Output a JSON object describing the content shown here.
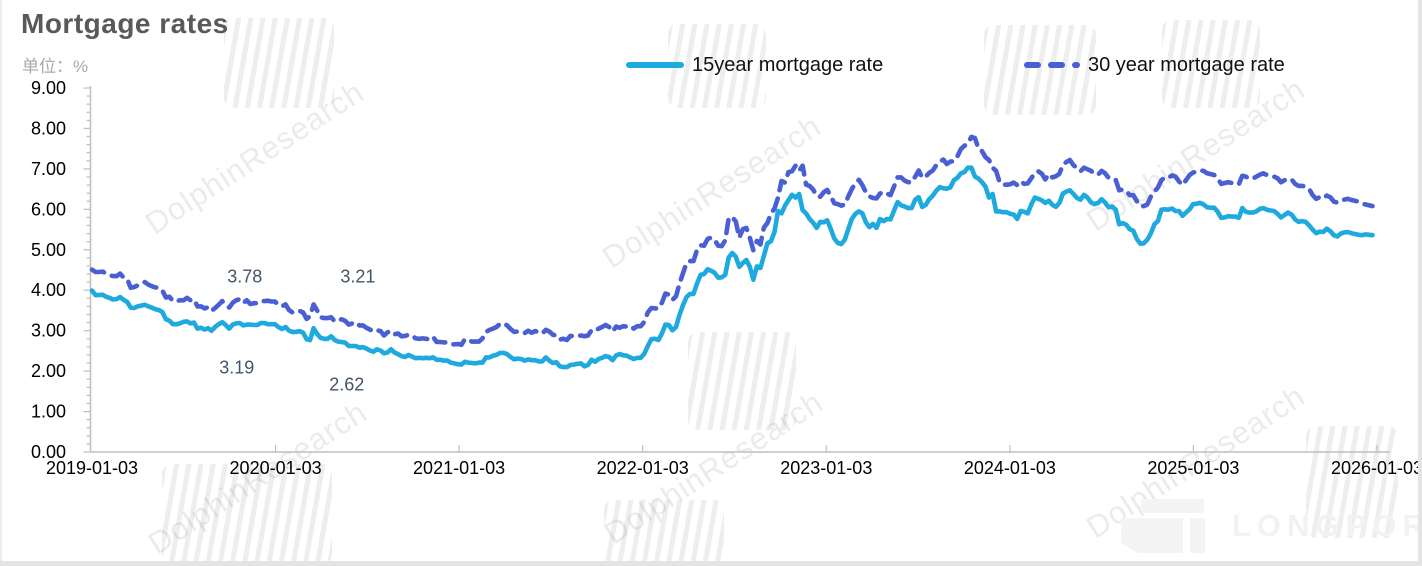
{
  "header": {
    "title": "Mortgage rates",
    "unit_label": "单位：%"
  },
  "legend": {
    "items": [
      {
        "label": "15year mortgage rate",
        "color": "#1EAADE",
        "style": "solid"
      },
      {
        "label": "30 year mortgage rate",
        "color": "#4A5FD3",
        "style": "dashed"
      }
    ]
  },
  "watermark": {
    "text": "DolphinResearch"
  },
  "logo": {
    "text": "LONGPORT"
  },
  "chart_data": {
    "type": "line",
    "title": "Mortgage rates",
    "unit": "%",
    "xlabel": "",
    "ylabel": "%",
    "grid": false,
    "legend_position": "top",
    "start_date": "2019-01-03",
    "interval_days": 7,
    "x_axis": {
      "tick_labels": [
        "2019-01-03",
        "2020-01-03",
        "2021-01-03",
        "2022-01-03",
        "2023-01-03",
        "2024-01-03",
        "2025-01-03",
        "2026-01-03"
      ],
      "span_days": 2557
    },
    "y_axis": {
      "min": 0,
      "max": 9,
      "major_step": 1,
      "minor_step": 0.2,
      "tick_labels": [
        "0.00",
        "1.00",
        "2.00",
        "3.00",
        "4.00",
        "5.00",
        "6.00",
        "7.00",
        "8.00",
        "9.00"
      ]
    },
    "series": [
      {
        "name": "30 year mortgage rate",
        "color": "#4A5FD3",
        "line_style": "dashed",
        "values": [
          4.51,
          4.45,
          4.45,
          4.46,
          4.41,
          4.37,
          4.35,
          4.35,
          4.41,
          4.31,
          4.28,
          4.06,
          4.08,
          4.12,
          4.17,
          4.2,
          4.14,
          4.1,
          4.07,
          4.06,
          3.99,
          3.82,
          3.84,
          3.73,
          3.73,
          3.75,
          3.75,
          3.81,
          3.75,
          3.77,
          3.6,
          3.6,
          3.55,
          3.58,
          3.49,
          3.56,
          3.64,
          3.73,
          3.65,
          3.57,
          3.69,
          3.75,
          3.78,
          3.69,
          3.75,
          3.66,
          3.68,
          3.68,
          3.73,
          3.73,
          3.74,
          3.72,
          3.72,
          3.64,
          3.6,
          3.65,
          3.51,
          3.45,
          3.47,
          3.49,
          3.45,
          3.29,
          3.36,
          3.65,
          3.5,
          3.33,
          3.31,
          3.31,
          3.33,
          3.23,
          3.26,
          3.28,
          3.24,
          3.15,
          3.18,
          3.21,
          3.13,
          3.13,
          3.07,
          3.03,
          2.98,
          3.01,
          2.99,
          2.88,
          2.96,
          2.99,
          2.91,
          2.93,
          2.86,
          2.87,
          2.9,
          2.88,
          2.81,
          2.8,
          2.81,
          2.8,
          2.78,
          2.84,
          2.72,
          2.72,
          2.71,
          2.71,
          2.67,
          2.66,
          2.67,
          2.65,
          2.79,
          2.77,
          2.73,
          2.73,
          2.73,
          2.81,
          2.97,
          3.02,
          3.05,
          3.09,
          3.17,
          3.18,
          3.13,
          3.04,
          2.97,
          2.98,
          2.96,
          2.94,
          3.0,
          2.95,
          2.99,
          2.96,
          2.93,
          3.02,
          2.98,
          2.9,
          2.88,
          2.78,
          2.8,
          2.77,
          2.87,
          2.86,
          2.87,
          2.88,
          2.86,
          2.88,
          3.01,
          2.99,
          3.05,
          3.09,
          3.14,
          3.09,
          2.98,
          3.1,
          3.07,
          3.11,
          3.1,
          3.12,
          3.05,
          3.11,
          3.11,
          3.22,
          3.45,
          3.56,
          3.55,
          3.55,
          3.69,
          3.92,
          3.89,
          3.76,
          3.85,
          4.16,
          4.42,
          4.67,
          4.72,
          4.72,
          5.0,
          5.11,
          5.1,
          5.27,
          5.3,
          5.25,
          5.1,
          5.09,
          5.23,
          5.78,
          5.81,
          5.7,
          5.3,
          5.51,
          5.54,
          5.3,
          4.99,
          5.22,
          5.13,
          5.55,
          5.66,
          5.89,
          6.02,
          6.29,
          6.7,
          6.66,
          6.92,
          6.94,
          7.08,
          6.95,
          7.08,
          6.61,
          6.58,
          6.49,
          6.33,
          6.31,
          6.42,
          6.48,
          6.33,
          6.15,
          6.13,
          6.09,
          6.12,
          6.32,
          6.5,
          6.65,
          6.73,
          6.6,
          6.42,
          6.32,
          6.28,
          6.27,
          6.39,
          6.43,
          6.39,
          6.35,
          6.57,
          6.79,
          6.79,
          6.71,
          6.67,
          6.67,
          6.81,
          6.96,
          6.78,
          6.81,
          6.9,
          6.96,
          7.09,
          7.18,
          7.23,
          7.12,
          7.18,
          7.19,
          7.31,
          7.49,
          7.57,
          7.63,
          7.79,
          7.76,
          7.5,
          7.44,
          7.29,
          7.22,
          7.03,
          6.95,
          6.67,
          6.61,
          6.61,
          6.62,
          6.66,
          6.6,
          6.69,
          6.63,
          6.64,
          6.77,
          6.9,
          6.94,
          6.88,
          6.74,
          6.87,
          6.79,
          6.82,
          6.88,
          7.1,
          7.17,
          7.22,
          7.09,
          7.02,
          6.94,
          7.03,
          6.99,
          6.95,
          6.87,
          6.86,
          6.95,
          6.89,
          6.78,
          6.77,
          6.73,
          6.47,
          6.49,
          6.46,
          6.35,
          6.35,
          6.2,
          6.09,
          6.08,
          6.12,
          6.32,
          6.44,
          6.54,
          6.72,
          6.79,
          6.78,
          6.84,
          6.81,
          6.69,
          6.6,
          6.72,
          6.85,
          6.91,
          6.93,
          6.96,
          6.95,
          6.89,
          6.87,
          6.85,
          6.76,
          6.63,
          6.65,
          6.67,
          6.65,
          6.64,
          6.62,
          6.83,
          6.81,
          6.76,
          6.76,
          6.81,
          6.86,
          6.89,
          6.85,
          6.84,
          6.81,
          6.77,
          6.67,
          6.72,
          6.75,
          6.74,
          6.63,
          6.58,
          6.58,
          6.56,
          6.5,
          6.35,
          6.26,
          6.3,
          6.27,
          6.34,
          6.3,
          6.19,
          6.17,
          6.22,
          6.24,
          6.26,
          6.23,
          6.21,
          6.19,
          6.15,
          6.12,
          6.1,
          6.08
        ]
      },
      {
        "name": "15year mortgage rate",
        "color": "#1EAADE",
        "line_style": "solid",
        "values": [
          3.99,
          3.88,
          3.88,
          3.89,
          3.84,
          3.81,
          3.77,
          3.78,
          3.83,
          3.76,
          3.71,
          3.57,
          3.56,
          3.6,
          3.62,
          3.64,
          3.6,
          3.57,
          3.53,
          3.51,
          3.46,
          3.28,
          3.25,
          3.16,
          3.16,
          3.18,
          3.22,
          3.23,
          3.18,
          3.2,
          3.05,
          3.07,
          3.03,
          3.06,
          3.0,
          3.09,
          3.16,
          3.21,
          3.14,
          3.05,
          3.15,
          3.18,
          3.19,
          3.13,
          3.15,
          3.15,
          3.14,
          3.14,
          3.19,
          3.19,
          3.16,
          3.16,
          3.16,
          3.09,
          3.04,
          3.09,
          3.0,
          2.97,
          2.97,
          2.99,
          2.95,
          2.79,
          2.77,
          3.06,
          2.92,
          2.82,
          2.8,
          2.8,
          2.86,
          2.77,
          2.73,
          2.72,
          2.7,
          2.62,
          2.62,
          2.62,
          2.58,
          2.59,
          2.56,
          2.51,
          2.48,
          2.54,
          2.51,
          2.44,
          2.46,
          2.54,
          2.46,
          2.42,
          2.37,
          2.35,
          2.4,
          2.36,
          2.32,
          2.33,
          2.32,
          2.33,
          2.32,
          2.34,
          2.28,
          2.28,
          2.26,
          2.26,
          2.21,
          2.19,
          2.17,
          2.16,
          2.23,
          2.21,
          2.2,
          2.19,
          2.21,
          2.21,
          2.34,
          2.34,
          2.38,
          2.4,
          2.45,
          2.45,
          2.42,
          2.35,
          2.29,
          2.31,
          2.3,
          2.26,
          2.29,
          2.27,
          2.27,
          2.24,
          2.24,
          2.34,
          2.26,
          2.2,
          2.22,
          2.12,
          2.1,
          2.1,
          2.15,
          2.16,
          2.18,
          2.19,
          2.12,
          2.15,
          2.28,
          2.23,
          2.3,
          2.33,
          2.37,
          2.35,
          2.27,
          2.39,
          2.42,
          2.39,
          2.38,
          2.34,
          2.3,
          2.33,
          2.33,
          2.43,
          2.62,
          2.79,
          2.8,
          2.77,
          2.93,
          3.15,
          3.14,
          3.01,
          3.09,
          3.39,
          3.63,
          3.83,
          3.91,
          3.91,
          4.17,
          4.38,
          4.4,
          4.52,
          4.48,
          4.43,
          4.31,
          4.32,
          4.38,
          4.81,
          4.92,
          4.83,
          4.58,
          4.67,
          4.75,
          4.58,
          4.26,
          4.59,
          4.55,
          4.85,
          5.16,
          5.21,
          5.44,
          5.96,
          5.9,
          6.09,
          6.23,
          6.36,
          6.29,
          6.38,
          5.98,
          5.9,
          5.76,
          5.67,
          5.54,
          5.69,
          5.68,
          5.73,
          5.52,
          5.28,
          5.17,
          5.14,
          5.25,
          5.51,
          5.76,
          5.89,
          5.95,
          5.9,
          5.68,
          5.56,
          5.64,
          5.54,
          5.76,
          5.71,
          5.76,
          5.75,
          5.97,
          6.18,
          6.1,
          6.07,
          6.03,
          6.03,
          6.24,
          6.3,
          6.06,
          6.11,
          6.25,
          6.34,
          6.46,
          6.55,
          6.52,
          6.51,
          6.54,
          6.72,
          6.78,
          6.89,
          6.92,
          7.03,
          7.03,
          6.81,
          6.76,
          6.67,
          6.56,
          6.29,
          6.38,
          5.95,
          5.95,
          5.93,
          5.93,
          5.89,
          5.87,
          5.76,
          5.96,
          5.94,
          5.9,
          6.12,
          6.29,
          6.26,
          6.22,
          6.16,
          6.21,
          6.11,
          6.06,
          6.16,
          6.39,
          6.44,
          6.47,
          6.38,
          6.28,
          6.24,
          6.36,
          6.29,
          6.17,
          6.13,
          6.16,
          6.25,
          6.17,
          6.05,
          6.07,
          5.99,
          5.63,
          5.66,
          5.62,
          5.51,
          5.47,
          5.27,
          5.15,
          5.16,
          5.25,
          5.41,
          5.63,
          5.71,
          5.99,
          6.0,
          5.99,
          6.02,
          5.96,
          5.96,
          5.84,
          5.92,
          6.0,
          6.13,
          6.14,
          6.16,
          6.12,
          6.05,
          6.04,
          6.04,
          5.94,
          5.79,
          5.8,
          5.83,
          5.82,
          5.82,
          5.79,
          6.03,
          5.94,
          5.92,
          5.92,
          5.95,
          6.01,
          6.03,
          5.99,
          5.97,
          5.96,
          5.89,
          5.8,
          5.86,
          5.92,
          5.87,
          5.75,
          5.69,
          5.71,
          5.69,
          5.6,
          5.5,
          5.41,
          5.45,
          5.44,
          5.52,
          5.46,
          5.36,
          5.33,
          5.4,
          5.43,
          5.44,
          5.41,
          5.39,
          5.37,
          5.36,
          5.38,
          5.37,
          5.36
        ]
      }
    ],
    "annotations": [
      {
        "text": "3.78",
        "series": "30 year mortgage rate",
        "x_day": 304,
        "y_value": 4.33
      },
      {
        "text": "3.21",
        "series": "30 year mortgage rate",
        "x_day": 529,
        "y_value": 4.33
      },
      {
        "text": "3.19",
        "series": "15year mortgage rate",
        "x_day": 288,
        "y_value": 2.08
      },
      {
        "text": "2.62",
        "series": "15year mortgage rate",
        "x_day": 507,
        "y_value": 1.66
      }
    ]
  }
}
